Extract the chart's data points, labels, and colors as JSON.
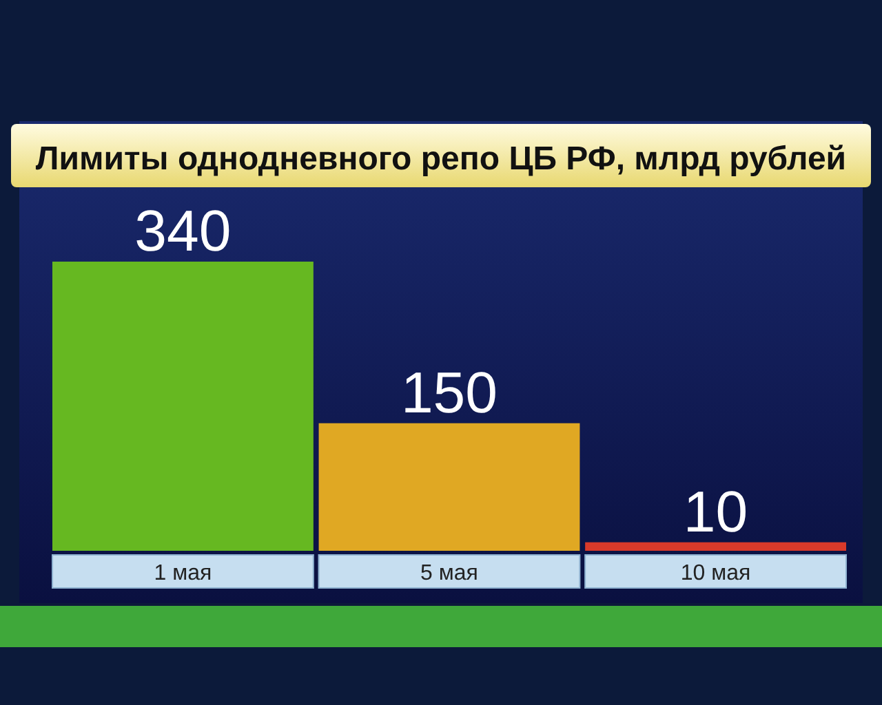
{
  "chart_data": {
    "type": "bar",
    "title": "Лимиты однодневного репо ЦБ РФ, млрд рублей",
    "categories": [
      "1 мая",
      "5 мая",
      "10 мая"
    ],
    "values": [
      340,
      150,
      10
    ],
    "colors": [
      "#66b821",
      "#e0a823",
      "#d93a2a"
    ],
    "data_labels": true
  }
}
